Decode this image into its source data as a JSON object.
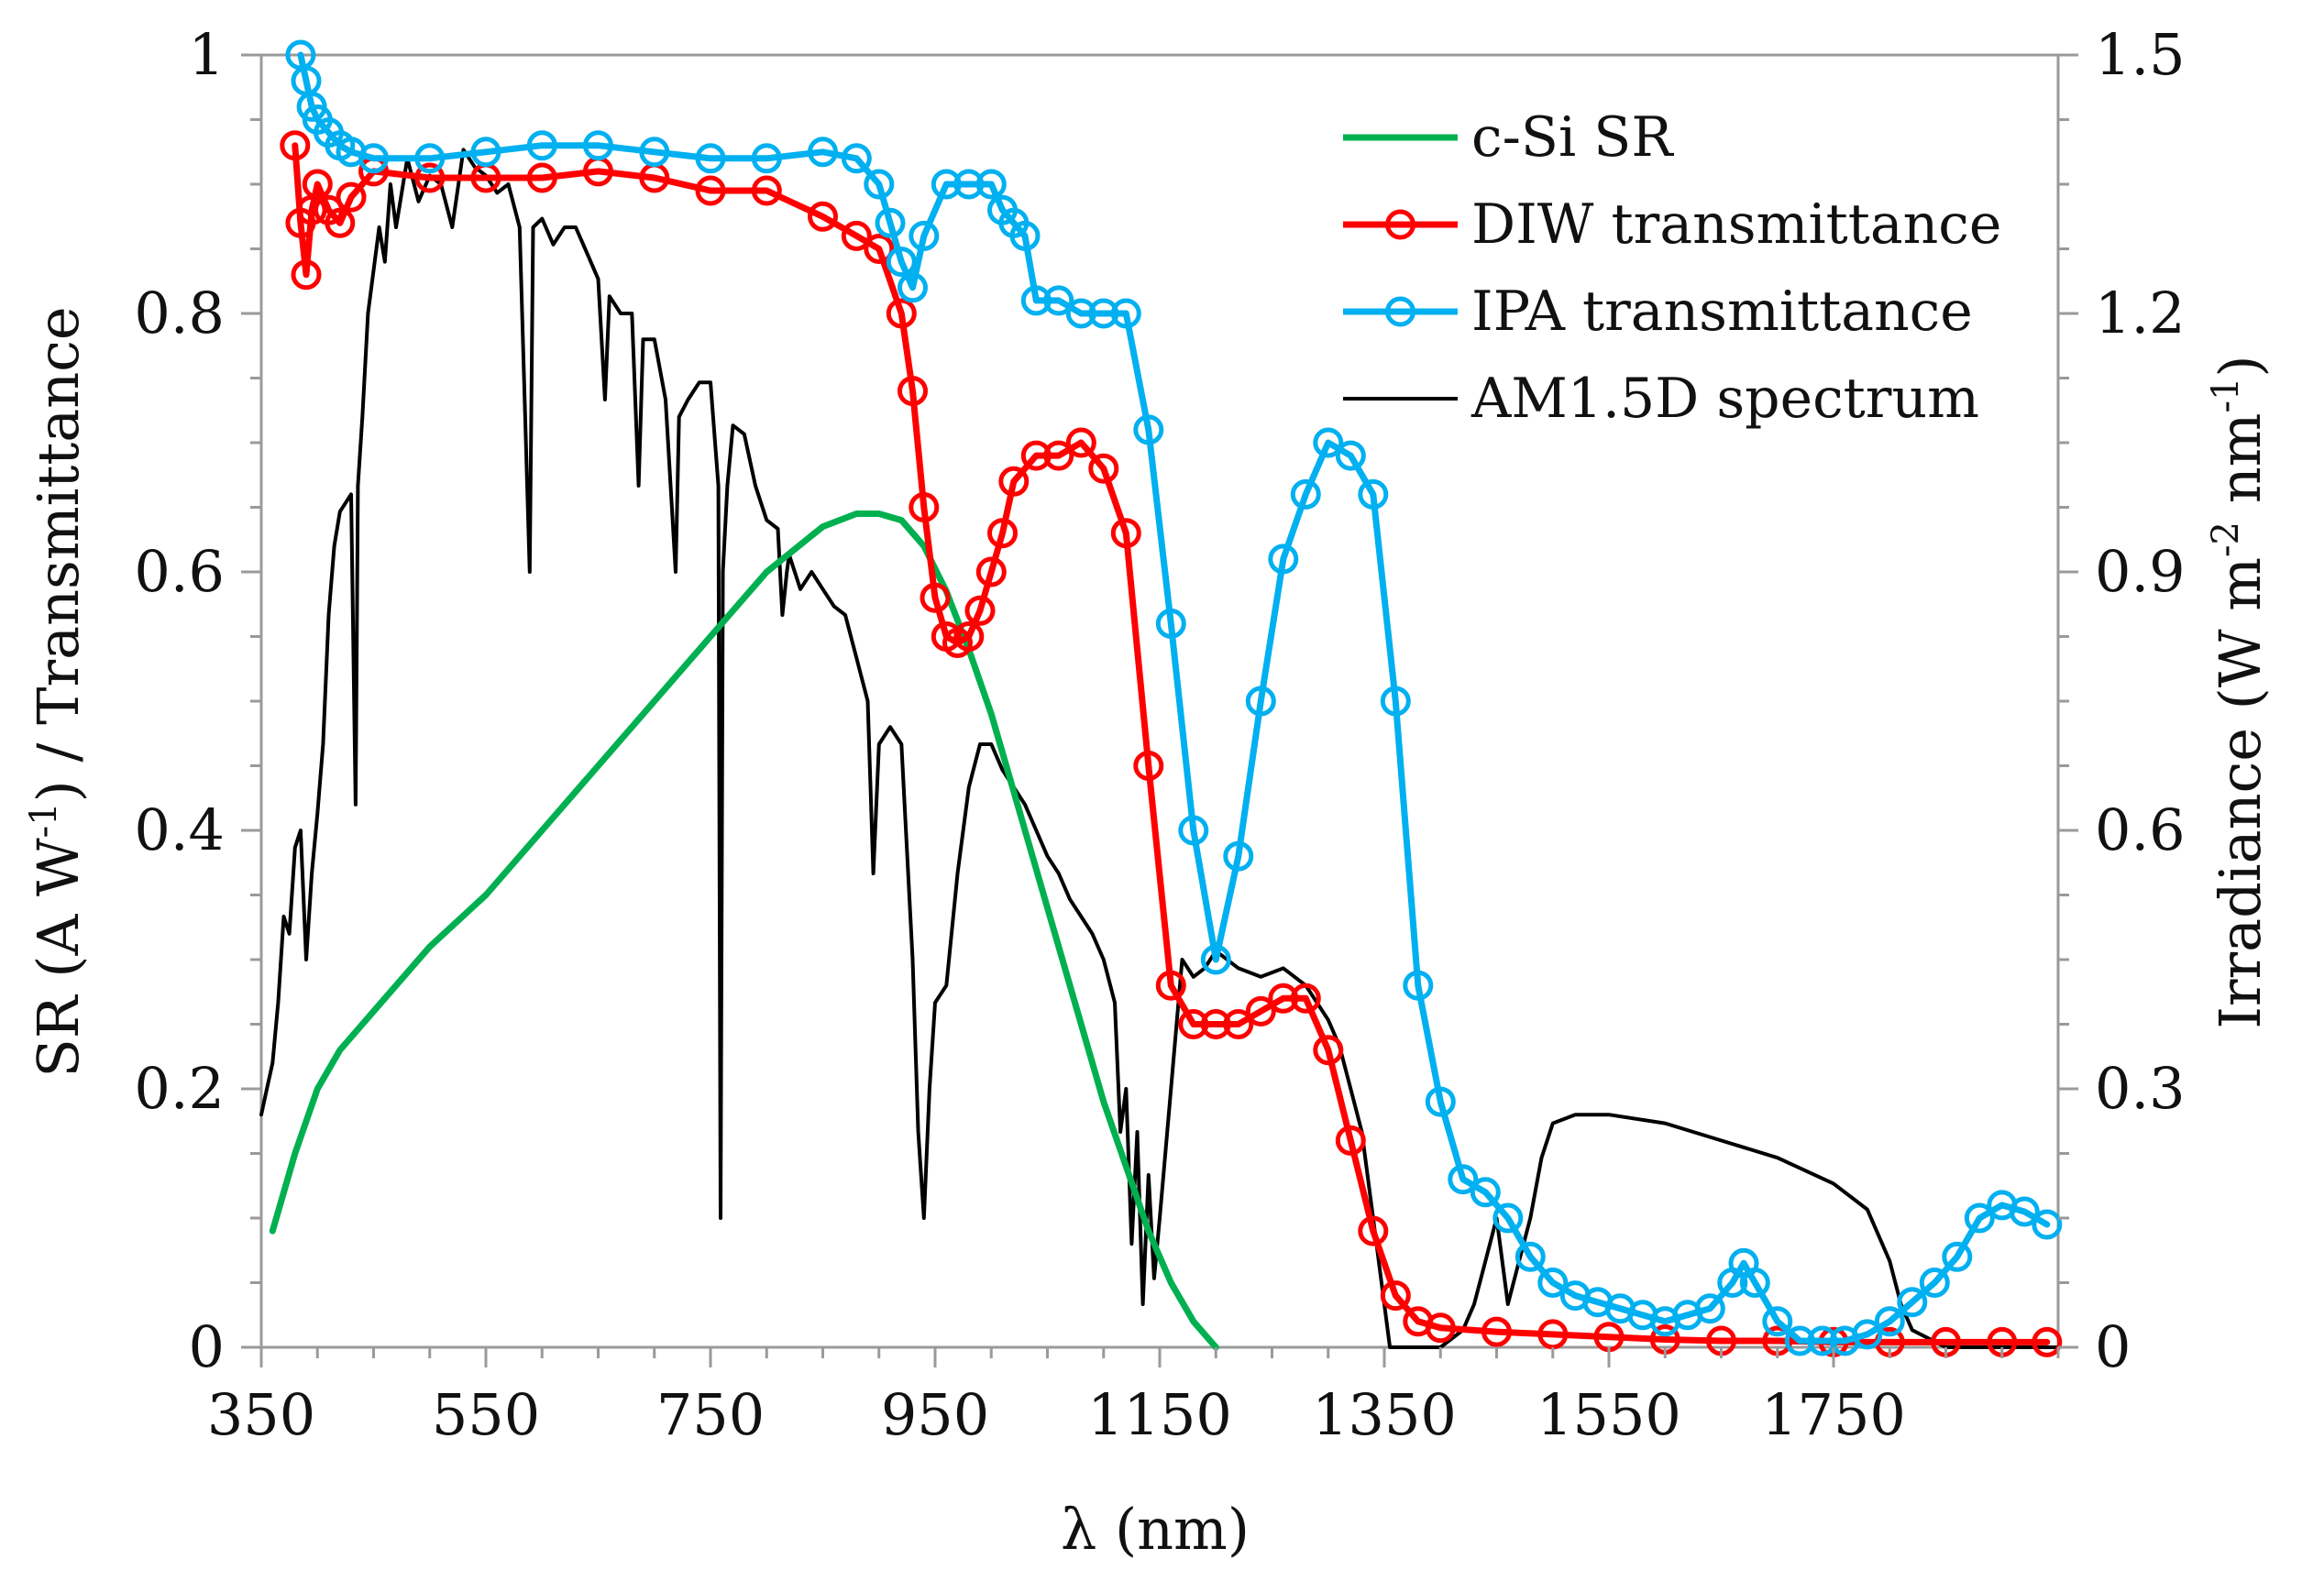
{
  "chart_data": {
    "type": "line",
    "title": "",
    "xlabel": "λ (nm)",
    "ylabel": "SR (A W-1) / Transmittance",
    "ylabel_parts": {
      "a": "SR (A W",
      "sup": "-1",
      "b": ") / Transmittance"
    },
    "y2label": "Irradiance (W m-2 nm-1)",
    "y2label_parts": {
      "a": "Irradiance (W m",
      "sup1": "-2",
      "mid": " nm",
      "sup2": "-1",
      "b": ")"
    },
    "xlim": [
      350,
      1950
    ],
    "ylim": [
      0,
      1
    ],
    "y2lim": [
      0,
      1.5
    ],
    "xticks": [
      350,
      550,
      750,
      950,
      1150,
      1350,
      1550,
      1750
    ],
    "xtick_labels": [
      "350",
      "550",
      "750",
      "950",
      "1150",
      "1350",
      "1550",
      "1750"
    ],
    "yticks": [
      0,
      0.2,
      0.4,
      0.6,
      0.8,
      1
    ],
    "ytick_labels": [
      "0",
      "0.2",
      "0.4",
      "0.6",
      "0.8",
      "1"
    ],
    "y2ticks": [
      0,
      0.3,
      0.6,
      0.9,
      1.2,
      1.5
    ],
    "y2tick_labels": [
      "0",
      "0.3",
      "0.6",
      "0.9",
      "1.2",
      "1.5"
    ],
    "grid": false,
    "legend_position": "top-right",
    "series": [
      {
        "name": "c-Si SR",
        "color": "#00b050",
        "axis": "left",
        "marker": "none",
        "x": [
          360,
          380,
          400,
          420,
          450,
          480,
          500,
          550,
          600,
          650,
          700,
          750,
          800,
          850,
          880,
          900,
          920,
          940,
          960,
          980,
          1000,
          1020,
          1040,
          1060,
          1080,
          1100,
          1120,
          1140,
          1160,
          1180,
          1200
        ],
        "y": [
          0.09,
          0.15,
          0.2,
          0.23,
          0.26,
          0.29,
          0.31,
          0.35,
          0.4,
          0.45,
          0.5,
          0.55,
          0.6,
          0.635,
          0.645,
          0.645,
          0.64,
          0.62,
          0.585,
          0.54,
          0.49,
          0.43,
          0.37,
          0.31,
          0.25,
          0.19,
          0.14,
          0.09,
          0.05,
          0.02,
          0.0
        ]
      },
      {
        "name": "DIW transmittance",
        "color": "#ff0000",
        "axis": "left",
        "marker": "circle",
        "x": [
          380,
          385,
          390,
          395,
          400,
          410,
          420,
          430,
          450,
          500,
          550,
          600,
          650,
          700,
          750,
          800,
          850,
          880,
          900,
          920,
          930,
          940,
          950,
          960,
          970,
          980,
          990,
          1000,
          1010,
          1020,
          1040,
          1060,
          1080,
          1100,
          1120,
          1140,
          1160,
          1180,
          1200,
          1220,
          1240,
          1260,
          1280,
          1300,
          1320,
          1340,
          1360,
          1380,
          1400,
          1450,
          1500,
          1550,
          1600,
          1650,
          1700,
          1750,
          1800,
          1850,
          1900,
          1940
        ],
        "y": [
          0.93,
          0.87,
          0.83,
          0.88,
          0.9,
          0.88,
          0.87,
          0.89,
          0.91,
          0.905,
          0.905,
          0.905,
          0.91,
          0.905,
          0.895,
          0.895,
          0.875,
          0.86,
          0.85,
          0.8,
          0.74,
          0.65,
          0.58,
          0.55,
          0.545,
          0.55,
          0.57,
          0.6,
          0.63,
          0.67,
          0.69,
          0.69,
          0.7,
          0.68,
          0.63,
          0.45,
          0.28,
          0.25,
          0.25,
          0.25,
          0.26,
          0.27,
          0.27,
          0.23,
          0.16,
          0.09,
          0.04,
          0.02,
          0.015,
          0.012,
          0.01,
          0.008,
          0.006,
          0.005,
          0.005,
          0.004,
          0.004,
          0.004,
          0.004,
          0.004
        ]
      },
      {
        "name": "IPA transmittance",
        "color": "#00b0f0",
        "axis": "left",
        "marker": "circle",
        "x": [
          385,
          390,
          395,
          400,
          410,
          420,
          430,
          450,
          500,
          550,
          600,
          650,
          700,
          750,
          800,
          850,
          880,
          900,
          910,
          920,
          930,
          940,
          960,
          980,
          1000,
          1010,
          1020,
          1030,
          1040,
          1060,
          1080,
          1100,
          1120,
          1140,
          1160,
          1180,
          1200,
          1220,
          1240,
          1260,
          1280,
          1300,
          1320,
          1340,
          1360,
          1380,
          1400,
          1420,
          1440,
          1460,
          1480,
          1500,
          1520,
          1540,
          1560,
          1580,
          1600,
          1620,
          1640,
          1660,
          1670,
          1680,
          1700,
          1720,
          1740,
          1760,
          1780,
          1800,
          1820,
          1840,
          1860,
          1880,
          1900,
          1920,
          1940
        ],
        "y": [
          1.0,
          0.98,
          0.96,
          0.95,
          0.94,
          0.93,
          0.925,
          0.92,
          0.92,
          0.925,
          0.93,
          0.93,
          0.925,
          0.92,
          0.92,
          0.925,
          0.92,
          0.9,
          0.87,
          0.84,
          0.82,
          0.86,
          0.9,
          0.9,
          0.9,
          0.88,
          0.87,
          0.86,
          0.81,
          0.81,
          0.8,
          0.8,
          0.8,
          0.71,
          0.56,
          0.4,
          0.3,
          0.38,
          0.5,
          0.61,
          0.66,
          0.7,
          0.69,
          0.66,
          0.5,
          0.28,
          0.19,
          0.13,
          0.12,
          0.1,
          0.07,
          0.05,
          0.04,
          0.035,
          0.03,
          0.025,
          0.02,
          0.025,
          0.03,
          0.05,
          0.065,
          0.05,
          0.02,
          0.005,
          0.005,
          0.005,
          0.01,
          0.02,
          0.035,
          0.05,
          0.07,
          0.1,
          0.11,
          0.105,
          0.095
        ]
      },
      {
        "name": "AM1.5D spectrum",
        "color": "#000000",
        "axis": "right",
        "marker": "none",
        "x": [
          350,
          355,
          360,
          365,
          370,
          375,
          380,
          385,
          390,
          395,
          400,
          405,
          410,
          415,
          420,
          425,
          430,
          434,
          436,
          440,
          445,
          450,
          455,
          460,
          465,
          470,
          480,
          490,
          500,
          510,
          520,
          530,
          540,
          550,
          560,
          570,
          580,
          589,
          592,
          600,
          610,
          620,
          630,
          640,
          650,
          656,
          660,
          670,
          680,
          686,
          690,
          700,
          710,
          719,
          722,
          730,
          740,
          750,
          757,
          759,
          761,
          765,
          770,
          780,
          790,
          800,
          810,
          814,
          818,
          820,
          830,
          840,
          850,
          860,
          870,
          880,
          890,
          895,
          900,
          910,
          920,
          930,
          935,
          940,
          945,
          950,
          960,
          970,
          980,
          990,
          1000,
          1010,
          1020,
          1030,
          1040,
          1050,
          1060,
          1070,
          1080,
          1090,
          1100,
          1110,
          1115,
          1120,
          1125,
          1130,
          1135,
          1140,
          1145,
          1150,
          1160,
          1170,
          1180,
          1190,
          1200,
          1220,
          1240,
          1260,
          1280,
          1300,
          1310,
          1320,
          1330,
          1340,
          1350,
          1355,
          1360,
          1400,
          1420,
          1430,
          1440,
          1450,
          1460,
          1470,
          1480,
          1490,
          1500,
          1520,
          1550,
          1600,
          1650,
          1700,
          1750,
          1780,
          1800,
          1810,
          1820,
          1850,
          1950
        ],
        "y": [
          0.27,
          0.3,
          0.33,
          0.4,
          0.5,
          0.48,
          0.58,
          0.6,
          0.45,
          0.55,
          0.62,
          0.7,
          0.85,
          0.93,
          0.97,
          0.98,
          0.99,
          0.63,
          1.0,
          1.08,
          1.2,
          1.25,
          1.3,
          1.26,
          1.35,
          1.3,
          1.38,
          1.33,
          1.36,
          1.35,
          1.3,
          1.39,
          1.37,
          1.36,
          1.34,
          1.35,
          1.3,
          0.9,
          1.3,
          1.31,
          1.28,
          1.3,
          1.3,
          1.27,
          1.24,
          1.1,
          1.22,
          1.2,
          1.2,
          1.0,
          1.17,
          1.17,
          1.1,
          0.9,
          1.08,
          1.1,
          1.12,
          1.12,
          1.0,
          0.15,
          0.9,
          1.0,
          1.07,
          1.06,
          1.0,
          0.96,
          0.95,
          0.85,
          0.9,
          0.92,
          0.88,
          0.9,
          0.88,
          0.86,
          0.85,
          0.8,
          0.75,
          0.55,
          0.7,
          0.72,
          0.7,
          0.45,
          0.25,
          0.15,
          0.3,
          0.4,
          0.42,
          0.55,
          0.65,
          0.7,
          0.7,
          0.67,
          0.65,
          0.63,
          0.6,
          0.57,
          0.55,
          0.52,
          0.5,
          0.48,
          0.45,
          0.4,
          0.25,
          0.3,
          0.12,
          0.25,
          0.05,
          0.2,
          0.08,
          0.15,
          0.3,
          0.45,
          0.43,
          0.44,
          0.46,
          0.44,
          0.43,
          0.44,
          0.42,
          0.38,
          0.35,
          0.3,
          0.25,
          0.15,
          0.05,
          0.0,
          0.0,
          0.0,
          0.02,
          0.05,
          0.1,
          0.15,
          0.05,
          0.1,
          0.15,
          0.22,
          0.26,
          0.27,
          0.27,
          0.26,
          0.24,
          0.22,
          0.19,
          0.16,
          0.1,
          0.05,
          0.02,
          0.0,
          0.0
        ]
      }
    ]
  }
}
